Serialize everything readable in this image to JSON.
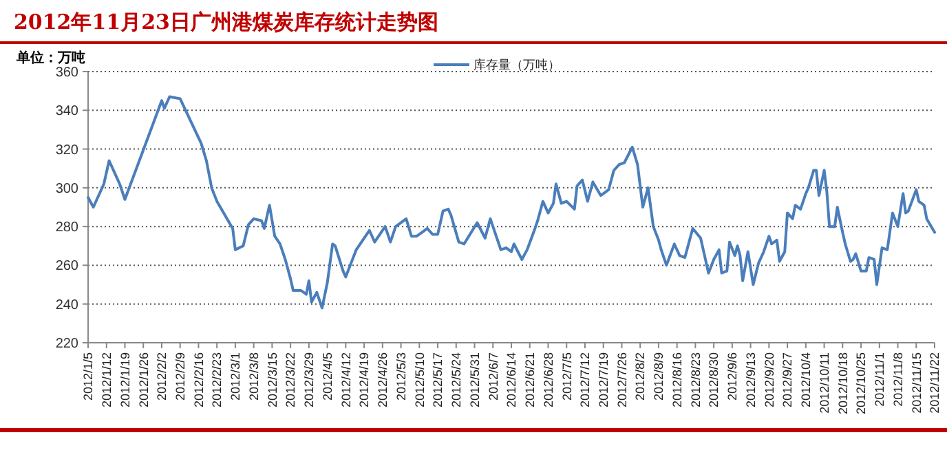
{
  "chart_data": {
    "type": "line",
    "title": "2012年11月23日广州港煤炭库存统计走势图",
    "ylabel": "单位：万吨",
    "legend": "top",
    "grid": "y",
    "line_style": "solid",
    "marker": "none",
    "xlim": [
      "2012-01-05",
      "2012-11-22"
    ],
    "xticks": [
      {
        "value": "2012-01-05",
        "label": "2012/1/5"
      },
      {
        "value": "2012-01-12",
        "label": "2012/1/12"
      },
      {
        "value": "2012-01-19",
        "label": "2012/1/19"
      },
      {
        "value": "2012-01-26",
        "label": "2012/1/26"
      },
      {
        "value": "2012-02-02",
        "label": "2012/2/2"
      },
      {
        "value": "2012-02-09",
        "label": "2012/2/9"
      },
      {
        "value": "2012-02-16",
        "label": "2012/2/16"
      },
      {
        "value": "2012-02-23",
        "label": "2012/2/23"
      },
      {
        "value": "2012-03-01",
        "label": "2012/3/1"
      },
      {
        "value": "2012-03-08",
        "label": "2012/3/8"
      },
      {
        "value": "2012-03-15",
        "label": "2012/3/15"
      },
      {
        "value": "2012-03-22",
        "label": "2012/3/22"
      },
      {
        "value": "2012-03-29",
        "label": "2012/3/29"
      },
      {
        "value": "2012-04-05",
        "label": "2012/4/5"
      },
      {
        "value": "2012-04-12",
        "label": "2012/4/12"
      },
      {
        "value": "2012-04-19",
        "label": "2012/4/19"
      },
      {
        "value": "2012-04-26",
        "label": "2012/4/26"
      },
      {
        "value": "2012-05-03",
        "label": "2012/5/3"
      },
      {
        "value": "2012-05-10",
        "label": "2012/5/10"
      },
      {
        "value": "2012-05-17",
        "label": "2012/5/17"
      },
      {
        "value": "2012-05-24",
        "label": "2012/5/24"
      },
      {
        "value": "2012-05-31",
        "label": "2012/5/31"
      },
      {
        "value": "2012-06-07",
        "label": "2012/6/7"
      },
      {
        "value": "2012-06-14",
        "label": "2012/6/14"
      },
      {
        "value": "2012-06-21",
        "label": "2012/6/21"
      },
      {
        "value": "2012-06-28",
        "label": "2012/6/28"
      },
      {
        "value": "2012-07-05",
        "label": "2012/7/5"
      },
      {
        "value": "2012-07-12",
        "label": "2012/7/12"
      },
      {
        "value": "2012-07-19",
        "label": "2012/7/19"
      },
      {
        "value": "2012-07-26",
        "label": "2012/7/26"
      },
      {
        "value": "2012-08-02",
        "label": "2012/8/2"
      },
      {
        "value": "2012-08-09",
        "label": "2012/8/9"
      },
      {
        "value": "2012-08-16",
        "label": "2012/8/16"
      },
      {
        "value": "2012-08-23",
        "label": "2012/8/23"
      },
      {
        "value": "2012-08-30",
        "label": "2012/8/30"
      },
      {
        "value": "2012-09-06",
        "label": "2012/9/6"
      },
      {
        "value": "2012-09-13",
        "label": "2012/9/13"
      },
      {
        "value": "2012-09-20",
        "label": "2012/9/20"
      },
      {
        "value": "2012-09-27",
        "label": "2012/9/27"
      },
      {
        "value": "2012-10-04",
        "label": "2012/10/4"
      },
      {
        "value": "2012-10-11",
        "label": "2012/10/11"
      },
      {
        "value": "2012-10-18",
        "label": "2012/10/18"
      },
      {
        "value": "2012-10-25",
        "label": "2012/10/25"
      },
      {
        "value": "2012-11-01",
        "label": "2012/11/1"
      },
      {
        "value": "2012-11-08",
        "label": "2012/11/8"
      },
      {
        "value": "2012-11-15",
        "label": "2012/11/15"
      },
      {
        "value": "2012-11-22",
        "label": "2012/11/22"
      }
    ],
    "ylim": [
      220,
      360
    ],
    "yticks": [
      220,
      240,
      260,
      280,
      300,
      320,
      340,
      360
    ],
    "series": [
      {
        "name": "库存量（万吨）",
        "color": "#4a7ebb",
        "x": [
          "2012-01-05",
          "2012-01-07",
          "2012-01-11",
          "2012-01-13",
          "2012-01-17",
          "2012-01-19",
          "2012-02-02",
          "2012-02-03",
          "2012-02-05",
          "2012-02-09",
          "2012-02-17",
          "2012-02-19",
          "2012-02-21",
          "2012-02-23",
          "2012-02-29",
          "2012-03-01",
          "2012-03-04",
          "2012-03-06",
          "2012-03-08",
          "2012-03-11",
          "2012-03-12",
          "2012-03-14",
          "2012-03-16",
          "2012-03-18",
          "2012-03-20",
          "2012-03-22",
          "2012-03-23",
          "2012-03-26",
          "2012-03-28",
          "2012-03-29",
          "2012-03-30",
          "2012-04-01",
          "2012-04-03",
          "2012-04-05",
          "2012-04-07",
          "2012-04-08",
          "2012-04-11",
          "2012-04-12",
          "2012-04-16",
          "2012-04-21",
          "2012-04-23",
          "2012-04-27",
          "2012-04-29",
          "2012-05-01",
          "2012-05-05",
          "2012-05-07",
          "2012-05-09",
          "2012-05-12",
          "2012-05-13",
          "2012-05-15",
          "2012-05-17",
          "2012-05-19",
          "2012-05-21",
          "2012-05-22",
          "2012-05-25",
          "2012-05-27",
          "2012-06-01",
          "2012-06-04",
          "2012-06-06",
          "2012-06-10",
          "2012-06-12",
          "2012-06-14",
          "2012-06-15",
          "2012-06-18",
          "2012-06-20",
          "2012-06-23",
          "2012-06-24",
          "2012-06-26",
          "2012-06-28",
          "2012-06-30",
          "2012-07-01",
          "2012-07-03",
          "2012-07-05",
          "2012-07-08",
          "2012-07-09",
          "2012-07-11",
          "2012-07-13",
          "2012-07-15",
          "2012-07-18",
          "2012-07-21",
          "2012-07-23",
          "2012-07-25",
          "2012-07-27",
          "2012-07-30",
          "2012-08-01",
          "2012-08-03",
          "2012-08-05",
          "2012-08-07",
          "2012-08-09",
          "2012-08-10",
          "2012-08-12",
          "2012-08-15",
          "2012-08-17",
          "2012-08-19",
          "2012-08-22",
          "2012-08-25",
          "2012-08-26",
          "2012-08-28",
          "2012-08-30",
          "2012-09-01",
          "2012-09-02",
          "2012-09-04",
          "2012-09-05",
          "2012-09-07",
          "2012-09-08",
          "2012-09-09",
          "2012-09-10",
          "2012-09-12",
          "2012-09-14",
          "2012-09-16",
          "2012-09-18",
          "2012-09-20",
          "2012-09-21",
          "2012-09-23",
          "2012-09-24",
          "2012-09-26",
          "2012-09-27",
          "2012-09-29",
          "2012-09-30",
          "2012-10-02",
          "2012-10-04",
          "2012-10-05",
          "2012-10-07",
          "2012-10-08",
          "2012-10-09",
          "2012-10-11",
          "2012-10-12",
          "2012-10-13",
          "2012-10-15",
          "2012-10-16",
          "2012-10-18",
          "2012-10-19",
          "2012-10-21",
          "2012-10-22",
          "2012-10-23",
          "2012-10-25",
          "2012-10-27",
          "2012-10-28",
          "2012-10-30",
          "2012-10-31",
          "2012-11-02",
          "2012-11-04",
          "2012-11-06",
          "2012-11-08",
          "2012-11-10",
          "2012-11-11",
          "2012-11-12",
          "2012-11-15",
          "2012-11-16",
          "2012-11-18",
          "2012-11-19",
          "2012-11-22"
        ],
        "values": [
          295,
          290,
          302,
          314,
          302,
          294,
          345,
          341,
          347,
          346,
          323,
          314,
          300,
          293,
          279,
          268,
          270,
          281,
          284,
          283,
          279,
          291,
          275,
          271,
          263,
          253,
          247,
          247,
          245,
          252,
          241,
          246,
          238,
          251,
          271,
          270,
          257,
          254,
          268,
          278,
          272,
          280,
          272,
          280,
          284,
          275,
          275,
          278,
          279,
          276,
          276,
          288,
          289,
          286,
          272,
          271,
          282,
          274,
          284,
          268,
          269,
          267,
          271,
          263,
          268,
          279,
          283,
          293,
          287,
          292,
          302,
          292,
          293,
          289,
          301,
          304,
          293,
          303,
          296,
          299,
          309,
          312,
          313,
          321,
          312,
          290,
          300,
          280,
          273,
          268,
          260,
          271,
          265,
          264,
          279,
          274,
          268,
          256,
          263,
          268,
          256,
          257,
          272,
          265,
          270,
          265,
          252,
          267,
          250,
          261,
          267,
          275,
          271,
          273,
          262,
          267,
          287,
          284,
          291,
          289,
          297,
          300,
          309,
          309,
          296,
          309,
          298,
          280,
          280,
          290,
          277,
          271,
          262,
          263,
          266,
          257,
          257,
          264,
          263,
          250,
          269,
          268,
          287,
          280,
          297,
          287,
          288,
          299,
          293,
          291,
          284,
          277
        ]
      }
    ]
  }
}
